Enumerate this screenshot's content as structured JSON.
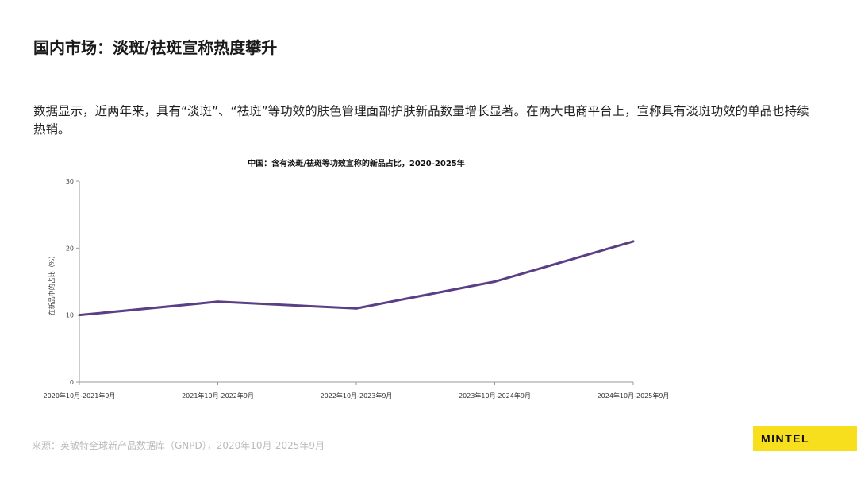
{
  "page": {
    "title": "国内市场：淡斑/祛斑宣称热度攀升",
    "body": "数据显示，近两年来，具有“淡斑”、“祛斑”等功效的肤色管理面部护肤新品数量增长显著。在两大电商平台上，宣称具有淡斑功效的单品也持续热销。",
    "source": "来源：英敏特全球新产品数据库（GNPD），2020年10月-2025年9月",
    "logo": "MINTEL"
  },
  "colors": {
    "line": "#5b3f86",
    "logo_bg": "#f7df1e",
    "axis": "#999999"
  },
  "chart_data": {
    "type": "line",
    "title": "中国：含有淡斑/祛斑等功效宣称的新品占比，2020-2025年",
    "xlabel": "",
    "ylabel": "在新品中的占比（%）",
    "categories": [
      "2020年10月-2021年9月",
      "2021年10月-2022年9月",
      "2022年10月-2023年9月",
      "2023年10月-2024年9月",
      "2024年10月-2025年9月"
    ],
    "values": [
      10,
      12,
      11,
      15,
      21
    ],
    "ylim": [
      0,
      30
    ],
    "yticks": [
      0,
      10,
      20,
      30
    ],
    "grid": false,
    "legend": "none"
  }
}
